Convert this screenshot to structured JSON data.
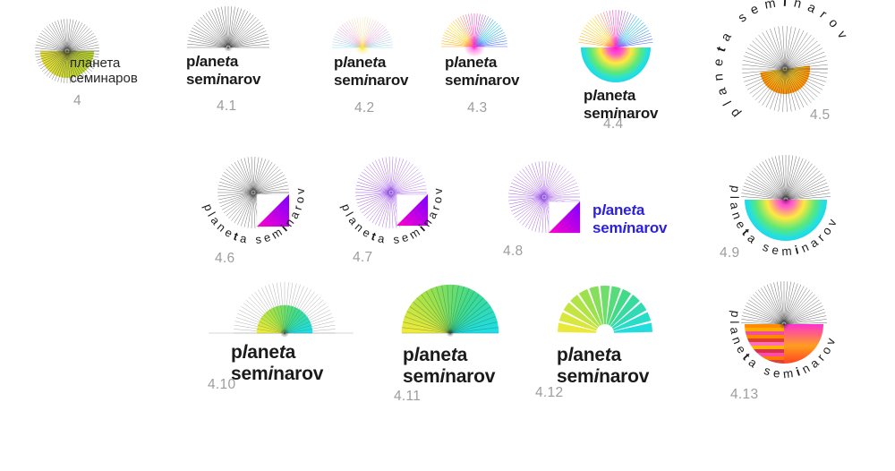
{
  "brand": {
    "latin": {
      "l1": [
        "p",
        "l",
        "ane",
        "t",
        "a"
      ],
      "l2": [
        "sem",
        "i",
        "narov"
      ]
    },
    "arc": [
      "plane",
      "t",
      "a sem",
      "i",
      "narov"
    ],
    "cyrillic": {
      "l1": "планета",
      "l2": "семинаров"
    }
  },
  "logos": [
    {
      "num": "4"
    },
    {
      "num": "4.1"
    },
    {
      "num": "4.2"
    },
    {
      "num": "4.3"
    },
    {
      "num": "4.4"
    },
    {
      "num": "4.5"
    },
    {
      "num": "4.6"
    },
    {
      "num": "4.7"
    },
    {
      "num": "4.8"
    },
    {
      "num": "4.9"
    },
    {
      "num": "4.10"
    },
    {
      "num": "4.11"
    },
    {
      "num": "4.12"
    },
    {
      "num": "4.13"
    }
  ],
  "colors": {
    "text_black": "#1b1b1b",
    "text_blue": "#2b1fe0",
    "number_gray": "#9d9d9d",
    "lime_left": "#e9e13a",
    "lime_right": "#b2d22c",
    "magenta": "#ff00cd",
    "violet": "#7a00ff",
    "sun_yellow": "#ffdf3c",
    "sun_orange": "#ff8c00",
    "rainbow_disk": [
      "#ff1fc8",
      "#ffe93e",
      "#5ce878",
      "#1fd8e8"
    ],
    "fan_gradient": [
      "#f4ea38",
      "#a0e148",
      "#3eda8c",
      "#1edde8"
    ],
    "ray_warm_cool": [
      "#ffa200",
      "#ffd800",
      "#ff1ac8",
      "#00c6f2",
      "#4356ff"
    ],
    "ray_pastel": [
      "#8fdce8",
      "#efa8de",
      "#f6eeaa"
    ],
    "ray_purple": "#8f3ce2",
    "stripes": [
      "#ff8c00",
      "#ffaa00",
      "#f0509a",
      "#ff8800",
      "#e03c30",
      "#ff70b8",
      "#ffb400",
      "#d8304c",
      "#ff4da6",
      "#ff7a00",
      "#e0403c"
    ],
    "right_quadrant": [
      "#ff30d0",
      "#ff9e1e",
      "#ff4420"
    ]
  }
}
